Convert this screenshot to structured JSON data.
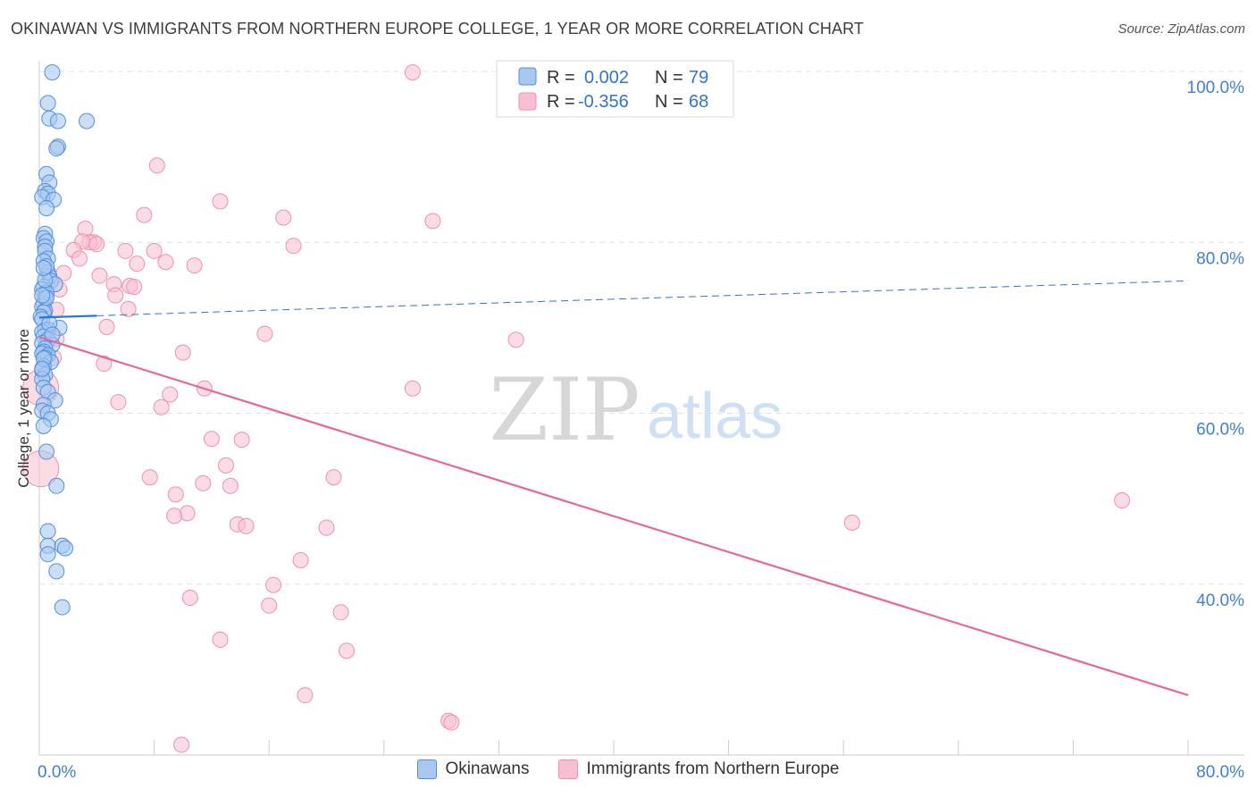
{
  "header": {
    "title": "OKINAWAN VS IMMIGRANTS FROM NORTHERN EUROPE COLLEGE, 1 YEAR OR MORE CORRELATION CHART",
    "source": "Source: ZipAtlas.com"
  },
  "watermark": {
    "zip": "ZIP",
    "atlas": "atlas"
  },
  "colors": {
    "blue_fill": "#a8c8f0",
    "blue_stroke": "#4f8fdf",
    "blue_line": "#2f74d0",
    "pink_fill": "#f8bfd0",
    "pink_stroke": "#ef8fae",
    "pink_line": "#e8679a",
    "tick_label": "#3f7fd6",
    "grid": "#e0e0e0"
  },
  "legend_top": [
    {
      "r_label": "R =",
      "r_value": "0.002",
      "n_label": "N =",
      "n_value": "79"
    },
    {
      "r_label": "R =",
      "r_value": "-0.356",
      "n_label": "N =",
      "n_value": "68"
    }
  ],
  "legend_bottom": [
    "Okinawans",
    "Immigrants from Northern Europe"
  ],
  "chart_data": {
    "type": "scatter",
    "title": "OKINAWAN VS IMMIGRANTS FROM NORTHERN EUROPE COLLEGE, 1 YEAR OR MORE CORRELATION CHART",
    "xlabel": "",
    "ylabel": "College, 1 year or more",
    "xlim": [
      0,
      0.8
    ],
    "ylim": [
      0.2,
      1.0
    ],
    "x_tick_labels": [
      "0.0%",
      "80.0%"
    ],
    "y_ticks": [
      1.0,
      0.8,
      0.6,
      0.4
    ],
    "y_tick_labels": [
      "100.0%",
      "80.0%",
      "60.0%",
      "40.0%"
    ],
    "series": [
      {
        "name": "Okinawans",
        "r": 0.002,
        "n": 79,
        "trend": {
          "x0": 0.0,
          "y0": 0.712,
          "x1": 0.8,
          "y1": 0.755,
          "solid_until": 0.04
        },
        "points": [
          [
            0.009,
            0.999
          ],
          [
            0.006,
            0.963
          ],
          [
            0.007,
            0.945
          ],
          [
            0.013,
            0.942
          ],
          [
            0.033,
            0.942
          ],
          [
            0.013,
            0.912
          ],
          [
            0.012,
            0.91
          ],
          [
            0.005,
            0.88
          ],
          [
            0.007,
            0.87
          ],
          [
            0.004,
            0.86
          ],
          [
            0.006,
            0.857
          ],
          [
            0.002,
            0.853
          ],
          [
            0.01,
            0.85
          ],
          [
            0.005,
            0.84
          ],
          [
            0.004,
            0.81
          ],
          [
            0.003,
            0.805
          ],
          [
            0.005,
            0.801
          ],
          [
            0.004,
            0.795
          ],
          [
            0.004,
            0.79
          ],
          [
            0.006,
            0.781
          ],
          [
            0.003,
            0.778
          ],
          [
            0.006,
            0.765
          ],
          [
            0.007,
            0.76
          ],
          [
            0.008,
            0.755
          ],
          [
            0.011,
            0.751
          ],
          [
            0.003,
            0.748
          ],
          [
            0.002,
            0.745
          ],
          [
            0.005,
            0.741
          ],
          [
            0.004,
            0.735
          ],
          [
            0.003,
            0.728
          ],
          [
            0.002,
            0.725
          ],
          [
            0.004,
            0.72
          ],
          [
            0.003,
            0.718
          ],
          [
            0.001,
            0.713
          ],
          [
            0.002,
            0.71
          ],
          [
            0.014,
            0.7
          ],
          [
            0.006,
            0.698
          ],
          [
            0.004,
            0.697
          ],
          [
            0.002,
            0.695
          ],
          [
            0.003,
            0.69
          ],
          [
            0.006,
            0.686
          ],
          [
            0.002,
            0.682
          ],
          [
            0.009,
            0.68
          ],
          [
            0.004,
            0.676
          ],
          [
            0.003,
            0.672
          ],
          [
            0.002,
            0.67
          ],
          [
            0.006,
            0.668
          ],
          [
            0.004,
            0.665
          ],
          [
            0.008,
            0.66
          ],
          [
            0.003,
            0.655
          ],
          [
            0.002,
            0.65
          ],
          [
            0.004,
            0.645
          ],
          [
            0.002,
            0.64
          ],
          [
            0.003,
            0.63
          ],
          [
            0.006,
            0.625
          ],
          [
            0.011,
            0.615
          ],
          [
            0.003,
            0.61
          ],
          [
            0.002,
            0.603
          ],
          [
            0.006,
            0.6
          ],
          [
            0.008,
            0.593
          ],
          [
            0.003,
            0.585
          ],
          [
            0.005,
            0.555
          ],
          [
            0.012,
            0.515
          ],
          [
            0.006,
            0.462
          ],
          [
            0.006,
            0.445
          ],
          [
            0.016,
            0.445
          ],
          [
            0.018,
            0.442
          ],
          [
            0.006,
            0.435
          ],
          [
            0.012,
            0.415
          ],
          [
            0.016,
            0.373
          ],
          [
            0.007,
            0.705
          ],
          [
            0.005,
            0.735
          ],
          [
            0.004,
            0.756
          ],
          [
            0.005,
            0.772
          ],
          [
            0.003,
            0.77
          ],
          [
            0.002,
            0.738
          ],
          [
            0.009,
            0.692
          ],
          [
            0.003,
            0.664
          ],
          [
            0.002,
            0.652
          ]
        ]
      },
      {
        "name": "Immigrants from Northern Europe",
        "r": -0.356,
        "n": 68,
        "trend": {
          "x0": 0.0,
          "y0": 0.689,
          "x1": 0.8,
          "y1": 0.27
        },
        "points": [
          [
            0.26,
            0.999
          ],
          [
            0.082,
            0.89
          ],
          [
            0.126,
            0.848
          ],
          [
            0.17,
            0.829
          ],
          [
            0.274,
            0.825
          ],
          [
            0.073,
            0.832
          ],
          [
            0.032,
            0.816
          ],
          [
            0.038,
            0.8
          ],
          [
            0.035,
            0.8
          ],
          [
            0.03,
            0.801
          ],
          [
            0.04,
            0.798
          ],
          [
            0.024,
            0.791
          ],
          [
            0.06,
            0.79
          ],
          [
            0.08,
            0.79
          ],
          [
            0.177,
            0.796
          ],
          [
            0.028,
            0.781
          ],
          [
            0.088,
            0.777
          ],
          [
            0.068,
            0.775
          ],
          [
            0.108,
            0.773
          ],
          [
            0.017,
            0.764
          ],
          [
            0.042,
            0.761
          ],
          [
            0.052,
            0.751
          ],
          [
            0.063,
            0.749
          ],
          [
            0.066,
            0.748
          ],
          [
            0.014,
            0.745
          ],
          [
            0.053,
            0.738
          ],
          [
            0.062,
            0.722
          ],
          [
            0.012,
            0.721
          ],
          [
            0.047,
            0.701
          ],
          [
            0.157,
            0.693
          ],
          [
            0.332,
            0.686
          ],
          [
            0.012,
            0.687
          ],
          [
            0.1,
            0.671
          ],
          [
            0.01,
            0.665
          ],
          [
            0.045,
            0.658
          ],
          [
            0.001,
            0.63
          ],
          [
            0.115,
            0.629
          ],
          [
            0.26,
            0.629
          ],
          [
            0.091,
            0.622
          ],
          [
            0.055,
            0.613
          ],
          [
            0.085,
            0.607
          ],
          [
            0.12,
            0.57
          ],
          [
            0.141,
            0.569
          ],
          [
            0.13,
            0.539
          ],
          [
            0.001,
            0.535
          ],
          [
            0.077,
            0.525
          ],
          [
            0.205,
            0.525
          ],
          [
            0.114,
            0.518
          ],
          [
            0.133,
            0.515
          ],
          [
            0.095,
            0.505
          ],
          [
            0.754,
            0.498
          ],
          [
            0.103,
            0.483
          ],
          [
            0.094,
            0.48
          ],
          [
            0.138,
            0.47
          ],
          [
            0.144,
            0.468
          ],
          [
            0.566,
            0.472
          ],
          [
            0.2,
            0.466
          ],
          [
            0.182,
            0.428
          ],
          [
            0.163,
            0.399
          ],
          [
            0.105,
            0.384
          ],
          [
            0.16,
            0.375
          ],
          [
            0.21,
            0.367
          ],
          [
            0.126,
            0.335
          ],
          [
            0.214,
            0.322
          ],
          [
            0.185,
            0.27
          ],
          [
            0.285,
            0.24
          ],
          [
            0.287,
            0.238
          ],
          [
            0.099,
            0.212
          ]
        ]
      }
    ]
  }
}
